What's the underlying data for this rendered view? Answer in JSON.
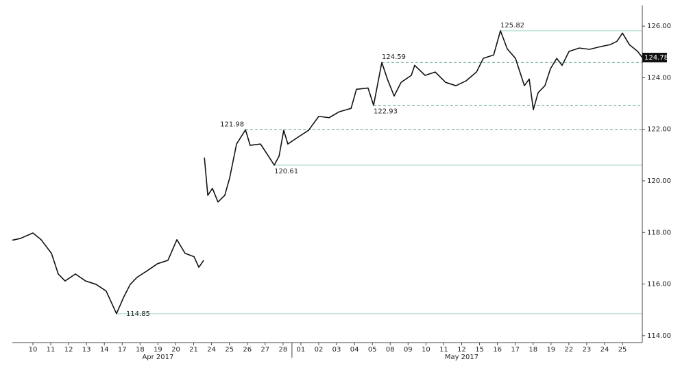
{
  "chart_data": {
    "type": "line",
    "xlim": [
      -1.15,
      34.11
    ],
    "ylim": [
      113.73,
      126.8
    ],
    "xticks": [
      {
        "value": 0,
        "label": "10"
      },
      {
        "value": 1,
        "label": "11"
      },
      {
        "value": 2,
        "label": "12"
      },
      {
        "value": 3,
        "label": "13"
      },
      {
        "value": 4,
        "label": "14"
      },
      {
        "value": 5,
        "label": "17"
      },
      {
        "value": 6,
        "label": "18"
      },
      {
        "value": 7,
        "label": "19"
      },
      {
        "value": 8,
        "label": "20"
      },
      {
        "value": 9,
        "label": "21"
      },
      {
        "value": 10,
        "label": "24"
      },
      {
        "value": 11,
        "label": "25"
      },
      {
        "value": 12,
        "label": "26"
      },
      {
        "value": 13,
        "label": "27"
      },
      {
        "value": 14,
        "label": "28"
      },
      {
        "value": 15,
        "label": "01"
      },
      {
        "value": 16,
        "label": "02"
      },
      {
        "value": 17,
        "label": "03"
      },
      {
        "value": 18,
        "label": "04"
      },
      {
        "value": 19,
        "label": "05"
      },
      {
        "value": 20,
        "label": "08"
      },
      {
        "value": 21,
        "label": "09"
      },
      {
        "value": 22,
        "label": "10"
      },
      {
        "value": 23,
        "label": "11"
      },
      {
        "value": 24,
        "label": "12"
      },
      {
        "value": 25,
        "label": "15"
      },
      {
        "value": 26,
        "label": "16"
      },
      {
        "value": 27,
        "label": "17"
      },
      {
        "value": 28,
        "label": "18"
      },
      {
        "value": 29,
        "label": "19"
      },
      {
        "value": 30,
        "label": "22"
      },
      {
        "value": 31,
        "label": "23"
      },
      {
        "value": 32,
        "label": "24"
      },
      {
        "value": 33,
        "label": "25"
      }
    ],
    "month_labels": [
      "Apr 2017",
      "May 2017"
    ],
    "yticks": [
      {
        "value": 114,
        "label": "114.00"
      },
      {
        "value": 116,
        "label": "116.00"
      },
      {
        "value": 118,
        "label": "118.00"
      },
      {
        "value": 120,
        "label": "120.00"
      },
      {
        "value": 122,
        "label": "122.00"
      },
      {
        "value": 124,
        "label": "124.00"
      },
      {
        "value": 126,
        "label": "126.00"
      }
    ],
    "series": [
      {
        "color": "#111111",
        "x": [
          -1.15,
          -0.69,
          0,
          0.46,
          1.04,
          1.42,
          1.8,
          2.38,
          2.95,
          3.53,
          4.1,
          4.68,
          5.06,
          5.45,
          5.83,
          6.41,
          6.98,
          7.56,
          8.06,
          8.52,
          9.02,
          9.29,
          9.56,
          9.58,
          9.6,
          9.79,
          10.05,
          10.36,
          10.74,
          11.01,
          11.4,
          11.9,
          12.16,
          12.74,
          13.24,
          13.51,
          13.78,
          14.04,
          14.27,
          14.85,
          15.43,
          16.0,
          16.58,
          17.15,
          17.81,
          18.11,
          18.76,
          19.07,
          19.53,
          19.84,
          20.22,
          20.61,
          21.18,
          21.37,
          21.95,
          22.52,
          23.1,
          23.68,
          24.25,
          24.83,
          25.21,
          25.79,
          26.17,
          26.55,
          27.01,
          27.51,
          27.78,
          28.01,
          28.28,
          28.66,
          28.97,
          29.32,
          29.62,
          30.01,
          30.58,
          31.16,
          31.74,
          32.31,
          32.69,
          33.0,
          33.39,
          33.85,
          34.11
        ],
        "values": [
          117.7,
          117.77,
          117.98,
          117.72,
          117.19,
          116.39,
          116.12,
          116.39,
          116.12,
          115.99,
          115.73,
          114.85,
          115.46,
          115.99,
          116.26,
          116.52,
          116.79,
          116.92,
          117.72,
          117.19,
          117.06,
          116.65,
          116.92,
          null,
          120.9,
          119.44,
          119.71,
          119.18,
          119.44,
          120.1,
          121.43,
          121.98,
          121.38,
          121.43,
          120.9,
          120.61,
          120.96,
          121.96,
          121.43,
          121.7,
          121.96,
          122.5,
          122.45,
          122.68,
          122.81,
          123.55,
          123.6,
          122.93,
          124.59,
          123.95,
          123.29,
          123.82,
          124.09,
          124.48,
          124.09,
          124.22,
          123.82,
          123.69,
          123.88,
          124.22,
          124.75,
          124.88,
          125.82,
          125.12,
          124.75,
          123.69,
          123.95,
          122.76,
          123.42,
          123.69,
          124.35,
          124.75,
          124.48,
          125.02,
          125.15,
          125.1,
          125.2,
          125.28,
          125.41,
          125.73,
          125.28,
          125.02,
          124.78
        ]
      }
    ],
    "levels": [
      {
        "value": 125.82,
        "x": 26.17,
        "style": "solid",
        "color": "#9fd9c4"
      },
      {
        "value": 124.59,
        "x": 19.53,
        "style": "dashed",
        "color": "#4c9a8a"
      },
      {
        "value": 122.93,
        "x": 19.07,
        "style": "dashed",
        "color": "#4c9a8a"
      },
      {
        "value": 121.98,
        "x": 11.9,
        "style": "dashed",
        "color": "#4c9a8a"
      },
      {
        "value": 120.61,
        "x": 13.51,
        "style": "solid",
        "color": "#9fd9c4"
      },
      {
        "value": 114.85,
        "x": 4.68,
        "style": "solid",
        "color": "#9fd9c4"
      }
    ],
    "last_price": 124.78
  }
}
